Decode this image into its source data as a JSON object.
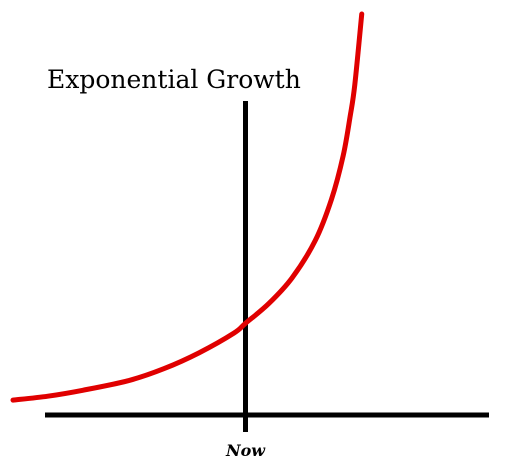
{
  "chart_data": {
    "type": "line",
    "title": "Exponential Growth",
    "xlabel": "",
    "ylabel": "",
    "x_tick_labels": [
      "Now"
    ],
    "line_color": "#e00000",
    "axis_color": "#000000",
    "grid": false,
    "legend": "none",
    "xlim": [
      -1.0,
      0.6
    ],
    "ylim": [
      0,
      1.0
    ],
    "series": [
      {
        "x": [
          -1.0,
          -0.85,
          -0.7,
          -0.5,
          -0.35,
          -0.2,
          -0.05,
          0.0,
          0.1,
          0.2,
          0.3,
          0.37,
          0.42,
          0.45,
          0.47,
          0.5
        ],
        "y": [
          0.02,
          0.03,
          0.045,
          0.07,
          0.1,
          0.14,
          0.19,
          0.215,
          0.265,
          0.33,
          0.425,
          0.53,
          0.64,
          0.74,
          0.82,
          1.0
        ]
      }
    ]
  }
}
